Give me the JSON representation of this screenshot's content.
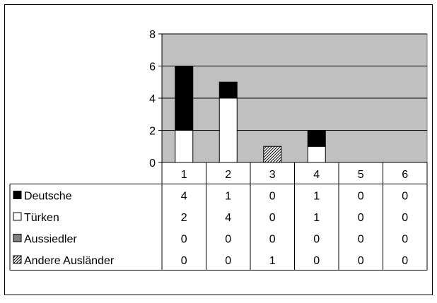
{
  "chart_data": {
    "type": "bar",
    "stacked": true,
    "categories": [
      "1",
      "2",
      "3",
      "4",
      "5",
      "6"
    ],
    "series": [
      {
        "name": "Deutsche",
        "values": [
          4,
          1,
          0,
          1,
          0,
          0
        ],
        "fill": "solid",
        "color": "#000000"
      },
      {
        "name": "Türken",
        "values": [
          2,
          4,
          0,
          1,
          0,
          0
        ],
        "fill": "solid",
        "color": "#ffffff"
      },
      {
        "name": "Aussiedler",
        "values": [
          0,
          0,
          0,
          0,
          0,
          0
        ],
        "fill": "solid",
        "color": "#808080"
      },
      {
        "name": "Andere Ausländer",
        "values": [
          0,
          0,
          1,
          0,
          0,
          0
        ],
        "fill": "hatch",
        "color": "#000000"
      }
    ],
    "stack_order_bottom_to_top": [
      "Türken",
      "Aussiedler",
      "Andere Ausländer",
      "Deutsche"
    ],
    "ylim": [
      0,
      8
    ],
    "yticks": [
      "0",
      "2",
      "4",
      "6",
      "8"
    ],
    "grid": true,
    "plot_background": "#c0c0c0",
    "legend": "data-table",
    "title": "",
    "xlabel": "",
    "ylabel": ""
  }
}
